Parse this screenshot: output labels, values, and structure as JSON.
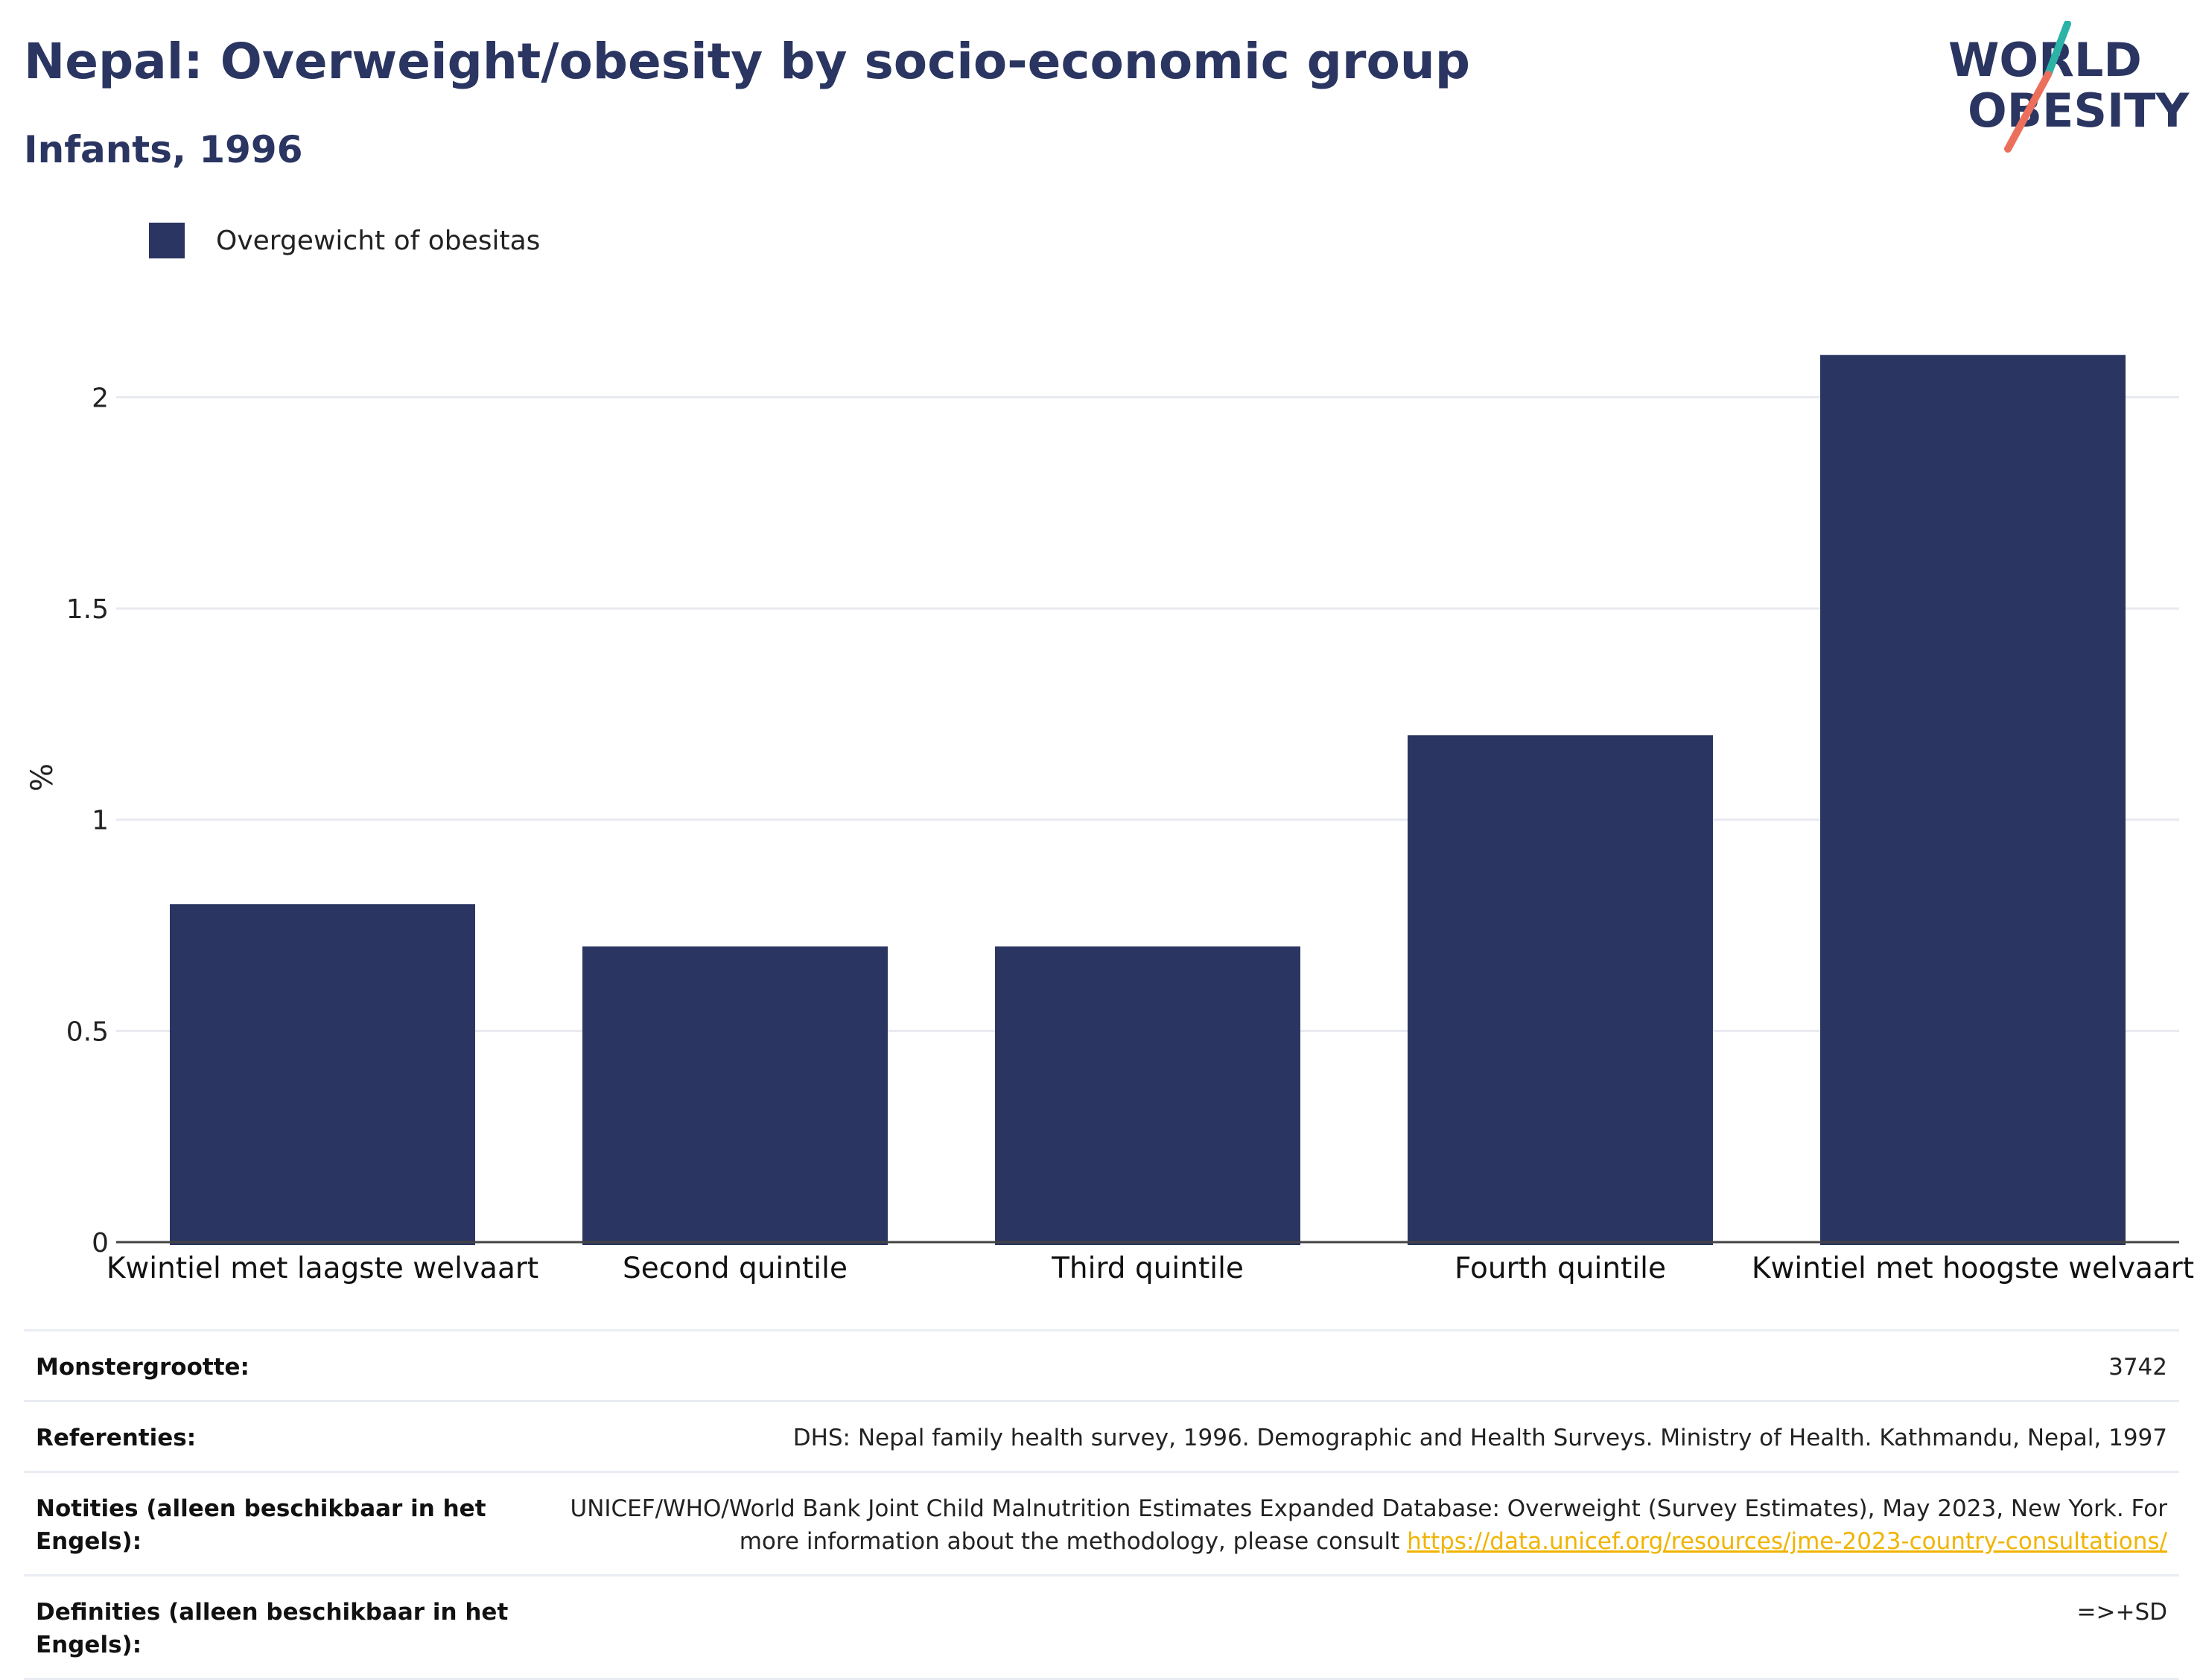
{
  "header": {
    "title": "Nepal: Overweight/obesity by socio-economic group",
    "subtitle": "Infants, 1996",
    "logo_line1": "WORLD",
    "logo_line2": "OBESITY"
  },
  "legend": {
    "label": "Overgewicht of obesitas"
  },
  "chart_data": {
    "type": "bar",
    "categories": [
      "Kwintiel met laagste welvaart",
      "Second quintile",
      "Third quintile",
      "Fourth quintile",
      "Kwintiel met hoogste welvaart"
    ],
    "series": [
      {
        "name": "Overgewicht of obesitas",
        "values": [
          0.8,
          0.7,
          0.7,
          1.2,
          2.1
        ]
      }
    ],
    "ylabel": "%",
    "ylim": [
      0,
      2.2
    ],
    "yticks": [
      0,
      0.5,
      1,
      1.5,
      2
    ],
    "ytick_labels": [
      "0",
      "0.5",
      "1",
      "1.5",
      "2"
    ],
    "grid": true,
    "legend_position": "top-left",
    "bar_color": "#2a3561"
  },
  "meta": {
    "sample_label": "Monstergrootte:",
    "sample_value": "3742",
    "references_label": "Referenties:",
    "references_value": "DHS: Nepal family health survey, 1996. Demographic and Health Surveys. Ministry of Health. Kathmandu, Nepal, 1997",
    "notes_label": "Notities (alleen beschikbaar in het Engels):",
    "notes_value": "UNICEF/WHO/World Bank Joint Child Malnutrition Estimates Expanded Database: Overweight (Survey Estimates), May 2023, New York. For more information about the methodology, please consult",
    "notes_link": "https://data.unicef.org/resources/jme-2023-country-consultations/",
    "definitions_label": "Definities (alleen beschikbaar in het Engels):",
    "definitions_value": "=>+SD"
  },
  "colors": {
    "primary": "#2a3561",
    "logo_teal": "#2bb3a8",
    "logo_coral": "#ec6f5c",
    "link": "#f0b400"
  }
}
